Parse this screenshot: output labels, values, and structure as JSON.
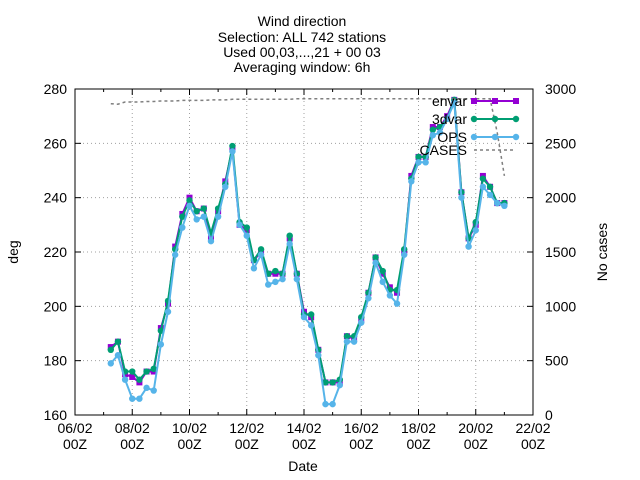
{
  "chart_data": {
    "type": "line",
    "title_lines": [
      "Wind direction",
      "Selection: ALL    742 stations",
      "Used 00,03,...,21 + 00 03",
      "Averaging window:  6h"
    ],
    "xlabel": "Date",
    "ylabel": "deg",
    "y2label": "No cases",
    "xlim": [
      0,
      16
    ],
    "ylim": [
      160,
      280
    ],
    "y2lim": [
      0,
      3000
    ],
    "x_tick_labels": [
      {
        "top": "06/02",
        "bottom": "00Z"
      },
      {
        "top": "08/02",
        "bottom": "00Z"
      },
      {
        "top": "10/02",
        "bottom": "00Z"
      },
      {
        "top": "12/02",
        "bottom": "00Z"
      },
      {
        "top": "14/02",
        "bottom": "00Z"
      },
      {
        "top": "16/02",
        "bottom": "00Z"
      },
      {
        "top": "18/02",
        "bottom": "00Z"
      },
      {
        "top": "20/02",
        "bottom": "00Z"
      },
      {
        "top": "22/02",
        "bottom": "00Z"
      }
    ],
    "y_ticks": [
      160,
      180,
      200,
      220,
      240,
      260,
      280
    ],
    "y2_ticks": [
      0,
      500,
      1000,
      1500,
      2000,
      2500,
      3000
    ],
    "grid": true,
    "legend_position": "top-right",
    "x": [
      1.25,
      1.5,
      1.75,
      2.0,
      2.25,
      2.5,
      2.75,
      3.0,
      3.25,
      3.5,
      3.75,
      4.0,
      4.25,
      4.5,
      4.75,
      5.0,
      5.25,
      5.5,
      5.75,
      6.0,
      6.25,
      6.5,
      6.75,
      7.0,
      7.25,
      7.5,
      7.75,
      8.0,
      8.25,
      8.5,
      8.75,
      9.0,
      9.25,
      9.5,
      9.75,
      10.0,
      10.25,
      10.5,
      10.75,
      11.0,
      11.25,
      11.5,
      11.75,
      12.0,
      12.25,
      12.5,
      12.75,
      13.0,
      13.25,
      13.5,
      13.75,
      14.0,
      14.25,
      14.5,
      14.75,
      15.0
    ],
    "series": [
      {
        "name": "envar",
        "color": "#9400d3",
        "marker": "square",
        "values": [
          185,
          187,
          175,
          174,
          172,
          176,
          176,
          192,
          201,
          222,
          234,
          240,
          235,
          236,
          225,
          235,
          246,
          258,
          230,
          228,
          217,
          220,
          212,
          212,
          212,
          225,
          212,
          198,
          196,
          184,
          172,
          172,
          172,
          189,
          188,
          195,
          205,
          218,
          212,
          207,
          205,
          220,
          248,
          255,
          255,
          266,
          266,
          270,
          276,
          242,
          225,
          230,
          248,
          244,
          238,
          238
        ]
      },
      {
        "name": "3dvar",
        "color": "#009e73",
        "marker": "circle",
        "values": [
          184,
          187,
          176,
          176,
          173,
          176,
          177,
          191,
          202,
          221,
          233,
          239,
          235,
          236,
          227,
          236,
          245,
          259,
          231,
          229,
          217,
          221,
          212,
          213,
          212,
          226,
          212,
          197,
          197,
          184,
          172,
          172,
          173,
          189,
          189,
          196,
          205,
          218,
          213,
          206,
          206,
          221,
          247,
          255,
          255,
          265,
          266,
          269,
          276,
          242,
          225,
          231,
          247,
          244,
          238,
          238
        ]
      },
      {
        "name": "OPS",
        "color": "#56b4e9",
        "marker": "circle",
        "values": [
          179,
          182,
          173,
          166,
          166,
          170,
          169,
          186,
          198,
          219,
          229,
          237,
          232,
          233,
          224,
          233,
          244,
          257,
          230,
          226,
          214,
          219,
          208,
          209,
          210,
          223,
          210,
          196,
          193,
          182,
          164,
          164,
          171,
          187,
          187,
          194,
          203,
          216,
          209,
          204,
          201,
          219,
          246,
          253,
          253,
          263,
          264,
          269,
          275,
          240,
          222,
          228,
          244,
          241,
          238,
          237
        ]
      },
      {
        "name": "CASES",
        "color": "#7f7f7f",
        "axis": "y2",
        "style": "dashed",
        "values": [
          2865,
          2860,
          2880,
          2880,
          2880,
          2885,
          2885,
          2890,
          2890,
          2890,
          2895,
          2895,
          2895,
          2895,
          2900,
          2900,
          2900,
          2905,
          2905,
          2905,
          2905,
          2905,
          2905,
          2905,
          2905,
          2905,
          2910,
          2910,
          2910,
          2910,
          2910,
          2910,
          2910,
          2910,
          2910,
          2910,
          2910,
          2910,
          2910,
          2910,
          2910,
          2910,
          2910,
          2910,
          2910,
          2910,
          2910,
          2910,
          2910,
          2910,
          2910,
          2910,
          2910,
          2910,
          2600,
          2200
        ]
      }
    ]
  }
}
